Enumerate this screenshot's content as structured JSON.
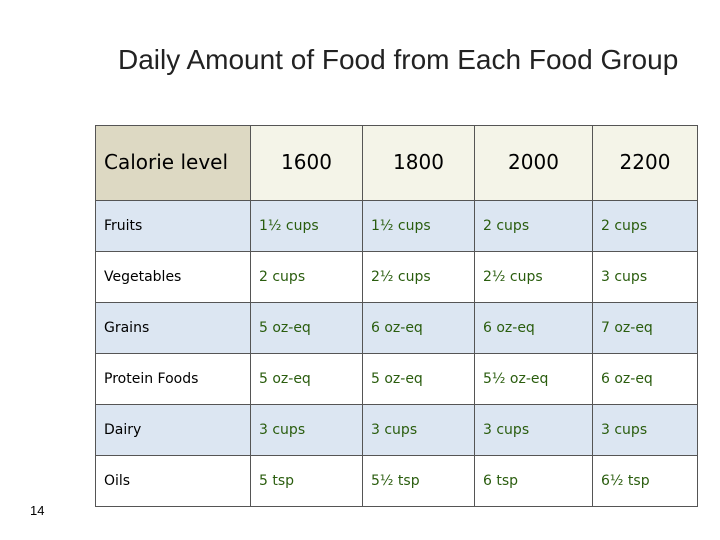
{
  "title": "Daily Amount of Food from Each Food Group",
  "table": {
    "header": [
      "Calorie level",
      "1600",
      "1800",
      "2000",
      "2200"
    ],
    "rows": [
      [
        "Fruits",
        "1½ cups",
        "1½ cups",
        "2 cups",
        "2 cups"
      ],
      [
        "Vegetables",
        "2 cups",
        "2½ cups",
        "2½ cups",
        "3 cups"
      ],
      [
        "Grains",
        "5 oz-eq",
        "6 oz-eq",
        "6 oz-eq",
        "7 oz-eq"
      ],
      [
        "Protein Foods",
        "5 oz-eq",
        "5 oz-eq",
        "5½ oz-eq",
        "6 oz-eq"
      ],
      [
        "Dairy",
        "3 cups",
        "3 cups",
        "3 cups",
        "3 cups"
      ],
      [
        "Oils",
        "5 tsp",
        "5½ tsp",
        "6 tsp",
        "6½ tsp"
      ]
    ]
  },
  "page_number": "14"
}
